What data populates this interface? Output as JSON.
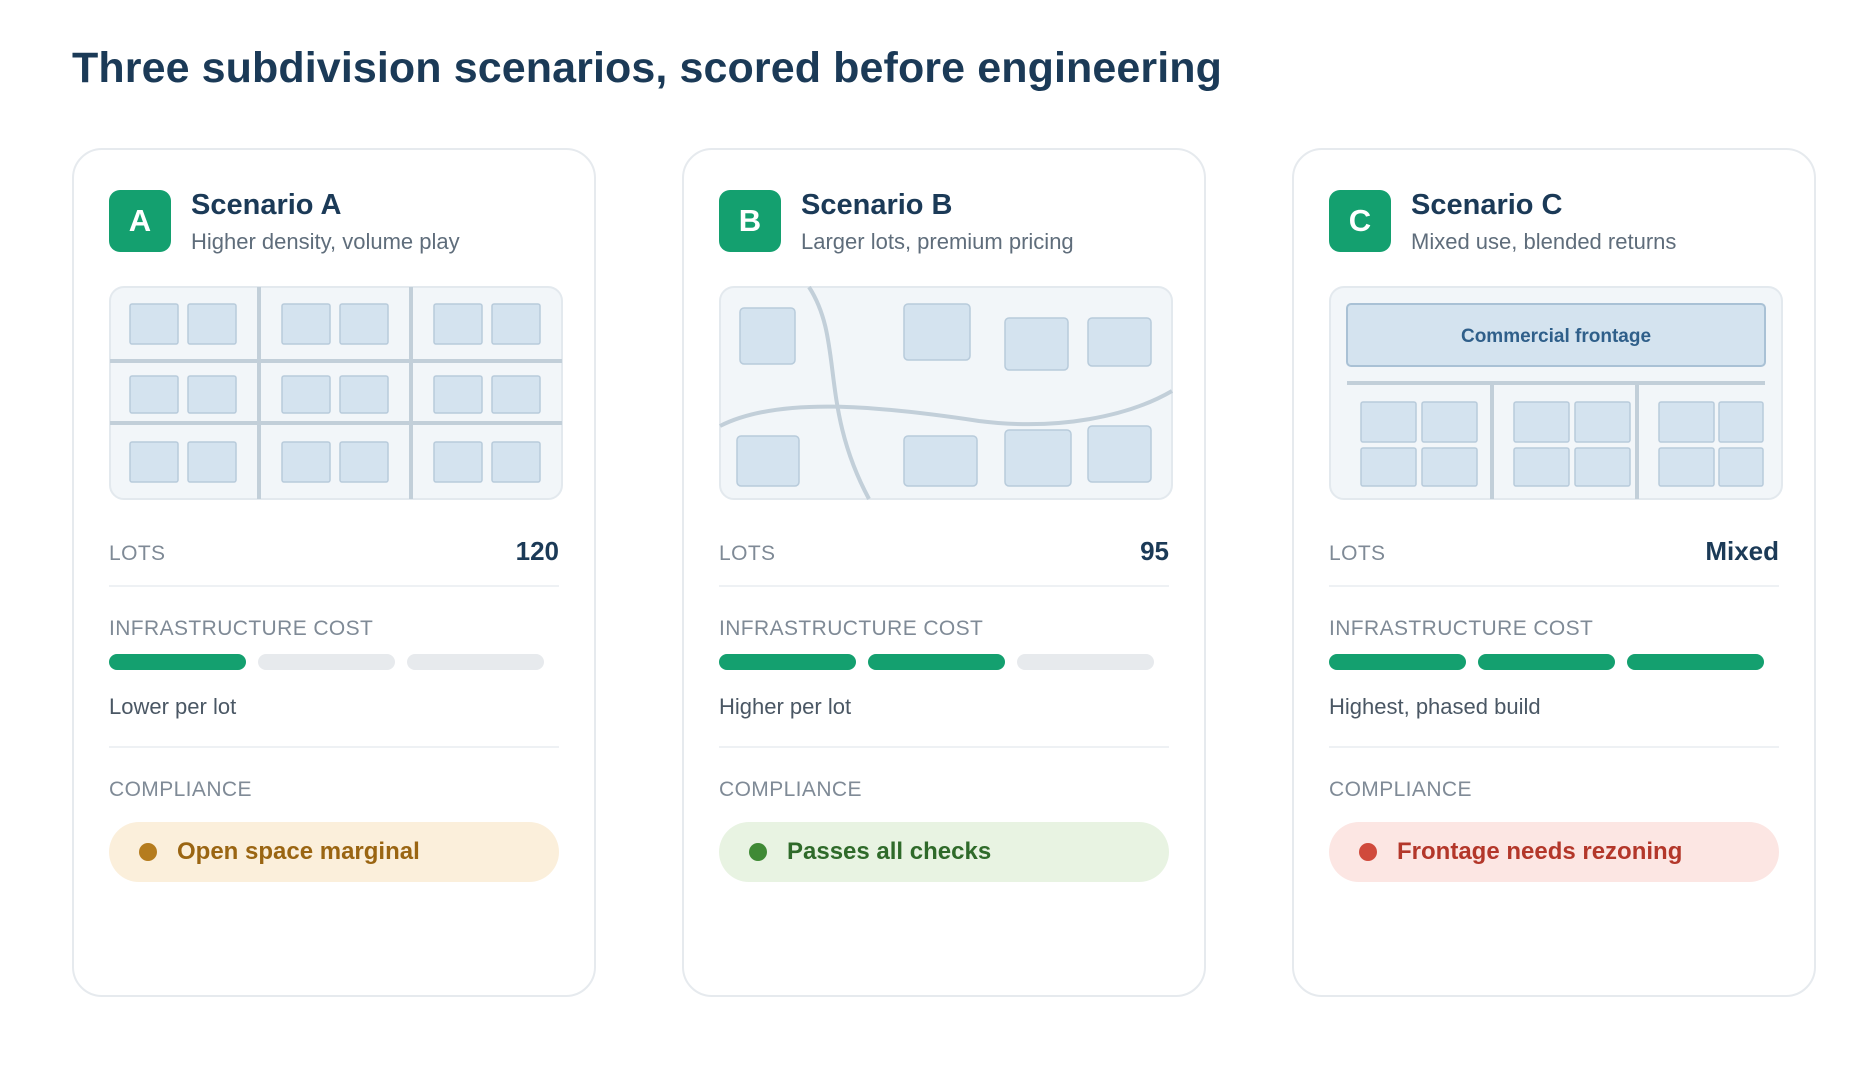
{
  "page": {
    "title": "Three subdivision scenarios, scored before engineering"
  },
  "labels": {
    "lots": "LOTS",
    "infrastructure_cost": "INFRASTRUCTURE COST",
    "compliance": "COMPLIANCE"
  },
  "colors": {
    "accent": "#14a06f",
    "warn": "#b57c1e",
    "ok": "#3f8a35",
    "bad": "#d04a3c"
  },
  "scenarios": [
    {
      "letter": "A",
      "name": "Scenario A",
      "subtitle": "Higher density, volume play",
      "lots": "120",
      "infrastructure_cost_level": 1,
      "infrastructure_cost_max": 3,
      "cost_note": "Lower per lot",
      "compliance": "Open space marginal",
      "compliance_status": "warning",
      "map_icon": "grid-subdivision-map"
    },
    {
      "letter": "B",
      "name": "Scenario B",
      "subtitle": "Larger lots, premium pricing",
      "lots": "95",
      "infrastructure_cost_level": 2,
      "infrastructure_cost_max": 3,
      "cost_note": "Higher per lot",
      "compliance": "Passes all checks",
      "compliance_status": "ok",
      "map_icon": "curvilinear-subdivision-map"
    },
    {
      "letter": "C",
      "name": "Scenario C",
      "subtitle": "Mixed use, blended returns",
      "lots": "Mixed",
      "infrastructure_cost_level": 3,
      "infrastructure_cost_max": 3,
      "cost_note": "Highest, phased build",
      "compliance": "Frontage needs rezoning",
      "compliance_status": "fail",
      "map_icon": "mixed-use-subdivision-map",
      "map_label": "Commercial frontage"
    }
  ]
}
